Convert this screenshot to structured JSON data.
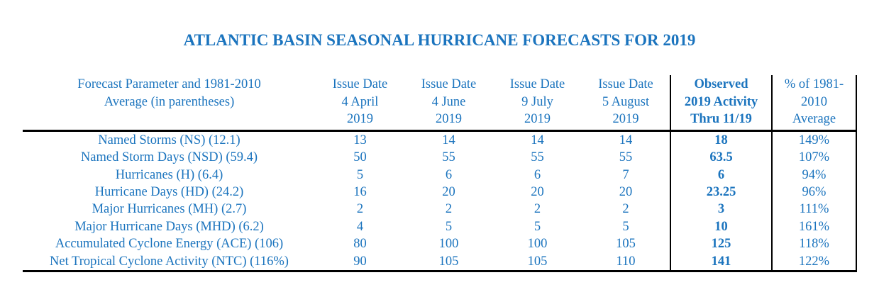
{
  "title": "ATLANTIC BASIN SEASONAL HURRICANE FORECASTS FOR 2019",
  "colors": {
    "text_blue": "#1b74be",
    "line_black": "#000000",
    "background": "#ffffff"
  },
  "table": {
    "header": {
      "parameter": [
        "Forecast Parameter and 1981-2010",
        "Average (in parentheses)"
      ],
      "issue_dates": [
        [
          "Issue Date",
          "4 April",
          "2019"
        ],
        [
          "Issue Date",
          "4 June",
          "2019"
        ],
        [
          "Issue Date",
          "9 July",
          "2019"
        ],
        [
          "Issue Date",
          "5 August",
          "2019"
        ]
      ],
      "observed": [
        "Observed",
        "2019 Activity",
        "Thru 11/19"
      ],
      "percent": [
        "% of 1981-",
        "2010",
        "Average"
      ]
    },
    "rows": [
      {
        "parameter": "Named Storms (NS) (12.1)",
        "forecasts": [
          "13",
          "14",
          "14",
          "14"
        ],
        "observed": "18",
        "percent": "149%"
      },
      {
        "parameter": "Named Storm Days (NSD) (59.4)",
        "forecasts": [
          "50",
          "55",
          "55",
          "55"
        ],
        "observed": "63.5",
        "percent": "107%"
      },
      {
        "parameter": "Hurricanes (H) (6.4)",
        "forecasts": [
          "5",
          "6",
          "6",
          "7"
        ],
        "observed": "6",
        "percent": "94%"
      },
      {
        "parameter": "Hurricane Days (HD) (24.2)",
        "forecasts": [
          "16",
          "20",
          "20",
          "20"
        ],
        "observed": "23.25",
        "percent": "96%"
      },
      {
        "parameter": "Major Hurricanes (MH) (2.7)",
        "forecasts": [
          "2",
          "2",
          "2",
          "2"
        ],
        "observed": "3",
        "percent": "111%"
      },
      {
        "parameter": "Major Hurricane Days (MHD) (6.2)",
        "forecasts": [
          "4",
          "5",
          "5",
          "5"
        ],
        "observed": "10",
        "percent": "161%"
      },
      {
        "parameter": "Accumulated Cyclone Energy (ACE) (106)",
        "forecasts": [
          "80",
          "100",
          "100",
          "105"
        ],
        "observed": "125",
        "percent": "118%"
      },
      {
        "parameter": "Net Tropical Cyclone Activity (NTC) (116%)",
        "forecasts": [
          "90",
          "105",
          "105",
          "110"
        ],
        "observed": "141",
        "percent": "122%"
      }
    ]
  }
}
